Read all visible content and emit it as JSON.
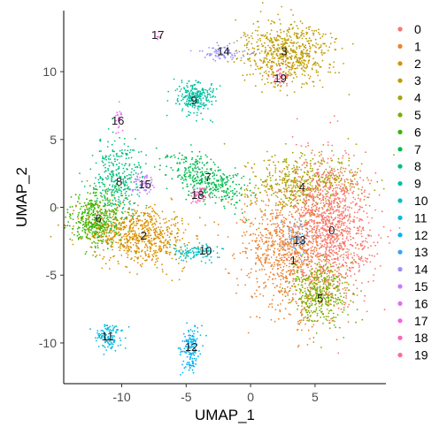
{
  "chart_data": {
    "type": "scatter",
    "title": "",
    "xlabel": "UMAP_1",
    "ylabel": "UMAP_2",
    "xlim": [
      -14.5,
      10.5
    ],
    "ylim": [
      -13,
      14.5
    ],
    "x_ticks": [
      -10,
      -5,
      0,
      5
    ],
    "y_ticks": [
      -10,
      -5,
      0,
      5,
      10
    ],
    "grid": false,
    "legend_position": "right",
    "clusters": [
      {
        "name": "0",
        "label_x": 6.3,
        "label_y": -1.7,
        "color": "#F8766D"
      },
      {
        "name": "1",
        "label_x": 3.3,
        "label_y": -3.9,
        "color": "#EA8331"
      },
      {
        "name": "2",
        "label_x": -8.3,
        "label_y": -2.1,
        "color": "#D89000"
      },
      {
        "name": "3",
        "label_x": 2.6,
        "label_y": 11.5,
        "color": "#C09B00"
      },
      {
        "name": "4",
        "label_x": 4.0,
        "label_y": 1.5,
        "color": "#A3A500"
      },
      {
        "name": "5",
        "label_x": 5.4,
        "label_y": -6.7,
        "color": "#7CAE00"
      },
      {
        "name": "6",
        "label_x": -11.8,
        "label_y": -0.8,
        "color": "#39B600"
      },
      {
        "name": "7",
        "label_x": -3.3,
        "label_y": 2.2,
        "color": "#00BB4E"
      },
      {
        "name": "8",
        "label_x": -10.2,
        "label_y": 1.9,
        "color": "#00BF7D"
      },
      {
        "name": "9",
        "label_x": -4.4,
        "label_y": 7.9,
        "color": "#00C1A3"
      },
      {
        "name": "10",
        "label_x": -3.5,
        "label_y": -3.2,
        "color": "#00BFC4"
      },
      {
        "name": "11",
        "label_x": -11.1,
        "label_y": -9.5,
        "color": "#00BAE0"
      },
      {
        "name": "12",
        "label_x": -4.6,
        "label_y": -10.3,
        "color": "#00B0F6"
      },
      {
        "name": "13",
        "label_x": 3.8,
        "label_y": -2.4,
        "color": "#35A2FF"
      },
      {
        "name": "14",
        "label_x": -2.1,
        "label_y": 11.5,
        "color": "#9590FF"
      },
      {
        "name": "15",
        "label_x": -8.2,
        "label_y": 1.7,
        "color": "#C77CFF"
      },
      {
        "name": "16",
        "label_x": -10.3,
        "label_y": 6.4,
        "color": "#E76BF3"
      },
      {
        "name": "17",
        "label_x": -7.2,
        "label_y": 12.7,
        "color": "#FA62DB"
      },
      {
        "name": "18",
        "label_x": -4.1,
        "label_y": 0.9,
        "color": "#FF62BC"
      },
      {
        "name": "19",
        "label_x": 2.3,
        "label_y": 9.5,
        "color": "#FF6C91"
      }
    ]
  }
}
